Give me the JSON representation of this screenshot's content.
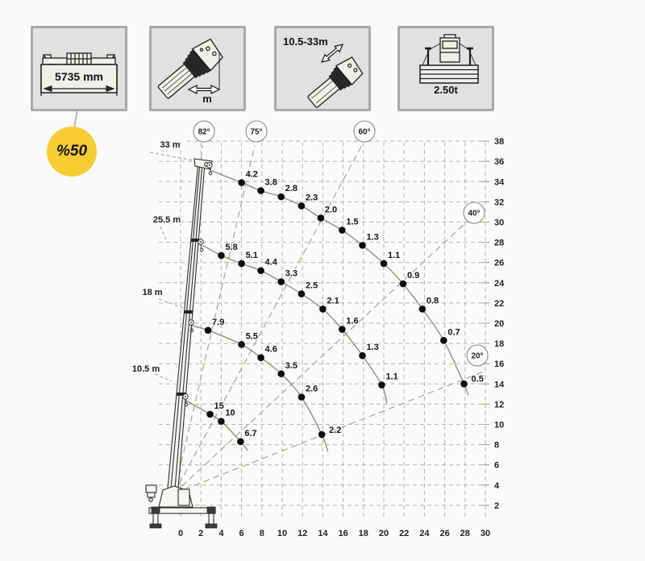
{
  "spec_icons": {
    "outrigger": {
      "value": "5735 mm",
      "badge": "%50"
    },
    "radius": {
      "unit": "m"
    },
    "boom_range": {
      "value": "10.5-33m"
    },
    "counterweight": {
      "value": "2.50t"
    }
  },
  "chart_data": {
    "type": "line",
    "x_ticks": [
      0,
      2,
      4,
      6,
      8,
      10,
      12,
      14,
      16,
      18,
      20,
      22,
      24,
      26,
      28,
      30
    ],
    "y_ticks": [
      2,
      4,
      6,
      8,
      10,
      12,
      14,
      16,
      18,
      20,
      22,
      24,
      26,
      28,
      30,
      32,
      34,
      36,
      38
    ],
    "x_range": [
      0,
      30
    ],
    "y_range": [
      0,
      38
    ],
    "grid": true,
    "angle_labels": [
      "82°",
      "75°",
      "60°",
      "40°",
      "20°"
    ],
    "series": [
      {
        "name": "33 m",
        "points": [
          {
            "x": 3.0,
            "y": 35.1,
            "load": ""
          },
          {
            "x": 6.0,
            "y": 33.9,
            "load": "4.2"
          },
          {
            "x": 7.9,
            "y": 33.1,
            "load": "3.8"
          },
          {
            "x": 9.9,
            "y": 32.5,
            "load": "2.8"
          },
          {
            "x": 11.9,
            "y": 31.6,
            "load": "2.3"
          },
          {
            "x": 13.8,
            "y": 30.4,
            "load": "2.0"
          },
          {
            "x": 15.9,
            "y": 29.2,
            "load": "1.5"
          },
          {
            "x": 17.9,
            "y": 27.7,
            "load": "1.3"
          },
          {
            "x": 20.0,
            "y": 25.9,
            "load": "1.1"
          },
          {
            "x": 21.9,
            "y": 23.9,
            "load": "0.9"
          },
          {
            "x": 23.8,
            "y": 21.4,
            "load": "0.8"
          },
          {
            "x": 25.9,
            "y": 18.3,
            "load": "0.7"
          },
          {
            "x": 27.9,
            "y": 14.0,
            "load": "0.5"
          },
          {
            "x": 28.3,
            "y": 12.9,
            "load": ""
          }
        ]
      },
      {
        "name": "25.5 m",
        "points": [
          {
            "x": 2.2,
            "y": 27.7,
            "load": ""
          },
          {
            "x": 4.0,
            "y": 26.7,
            "load": "5.8"
          },
          {
            "x": 6.0,
            "y": 25.9,
            "load": "5.1"
          },
          {
            "x": 7.9,
            "y": 25.2,
            "load": "4.4"
          },
          {
            "x": 9.9,
            "y": 24.1,
            "load": "3.3"
          },
          {
            "x": 11.9,
            "y": 22.9,
            "load": "2.5"
          },
          {
            "x": 14.0,
            "y": 21.4,
            "load": "2.1"
          },
          {
            "x": 15.9,
            "y": 19.4,
            "load": "1.6"
          },
          {
            "x": 17.9,
            "y": 16.8,
            "load": "1.3"
          },
          {
            "x": 19.8,
            "y": 13.9,
            "load": "1.1"
          },
          {
            "x": 20.3,
            "y": 12.1,
            "load": ""
          }
        ]
      },
      {
        "name": "18 m",
        "points": [
          {
            "x": 1.0,
            "y": 19.8,
            "load": ""
          },
          {
            "x": 2.7,
            "y": 19.3,
            "load": "7.9"
          },
          {
            "x": 6.0,
            "y": 17.9,
            "load": "5.5"
          },
          {
            "x": 7.9,
            "y": 16.6,
            "load": "4.6"
          },
          {
            "x": 9.9,
            "y": 15.0,
            "load": "3.5"
          },
          {
            "x": 11.9,
            "y": 12.7,
            "load": "2.6"
          },
          {
            "x": 13.9,
            "y": 9.0,
            "load": "2.2"
          },
          {
            "x": 14.5,
            "y": 7.3,
            "load": ""
          }
        ]
      },
      {
        "name": "10.5 m",
        "points": [
          {
            "x": 0.55,
            "y": 12.35,
            "load": ""
          },
          {
            "x": 2.9,
            "y": 11.0,
            "load": "15"
          },
          {
            "x": 4.0,
            "y": 10.3,
            "load": "10"
          },
          {
            "x": 5.9,
            "y": 8.3,
            "load": "6.7"
          },
          {
            "x": 6.6,
            "y": 7.4,
            "load": ""
          }
        ]
      }
    ]
  }
}
